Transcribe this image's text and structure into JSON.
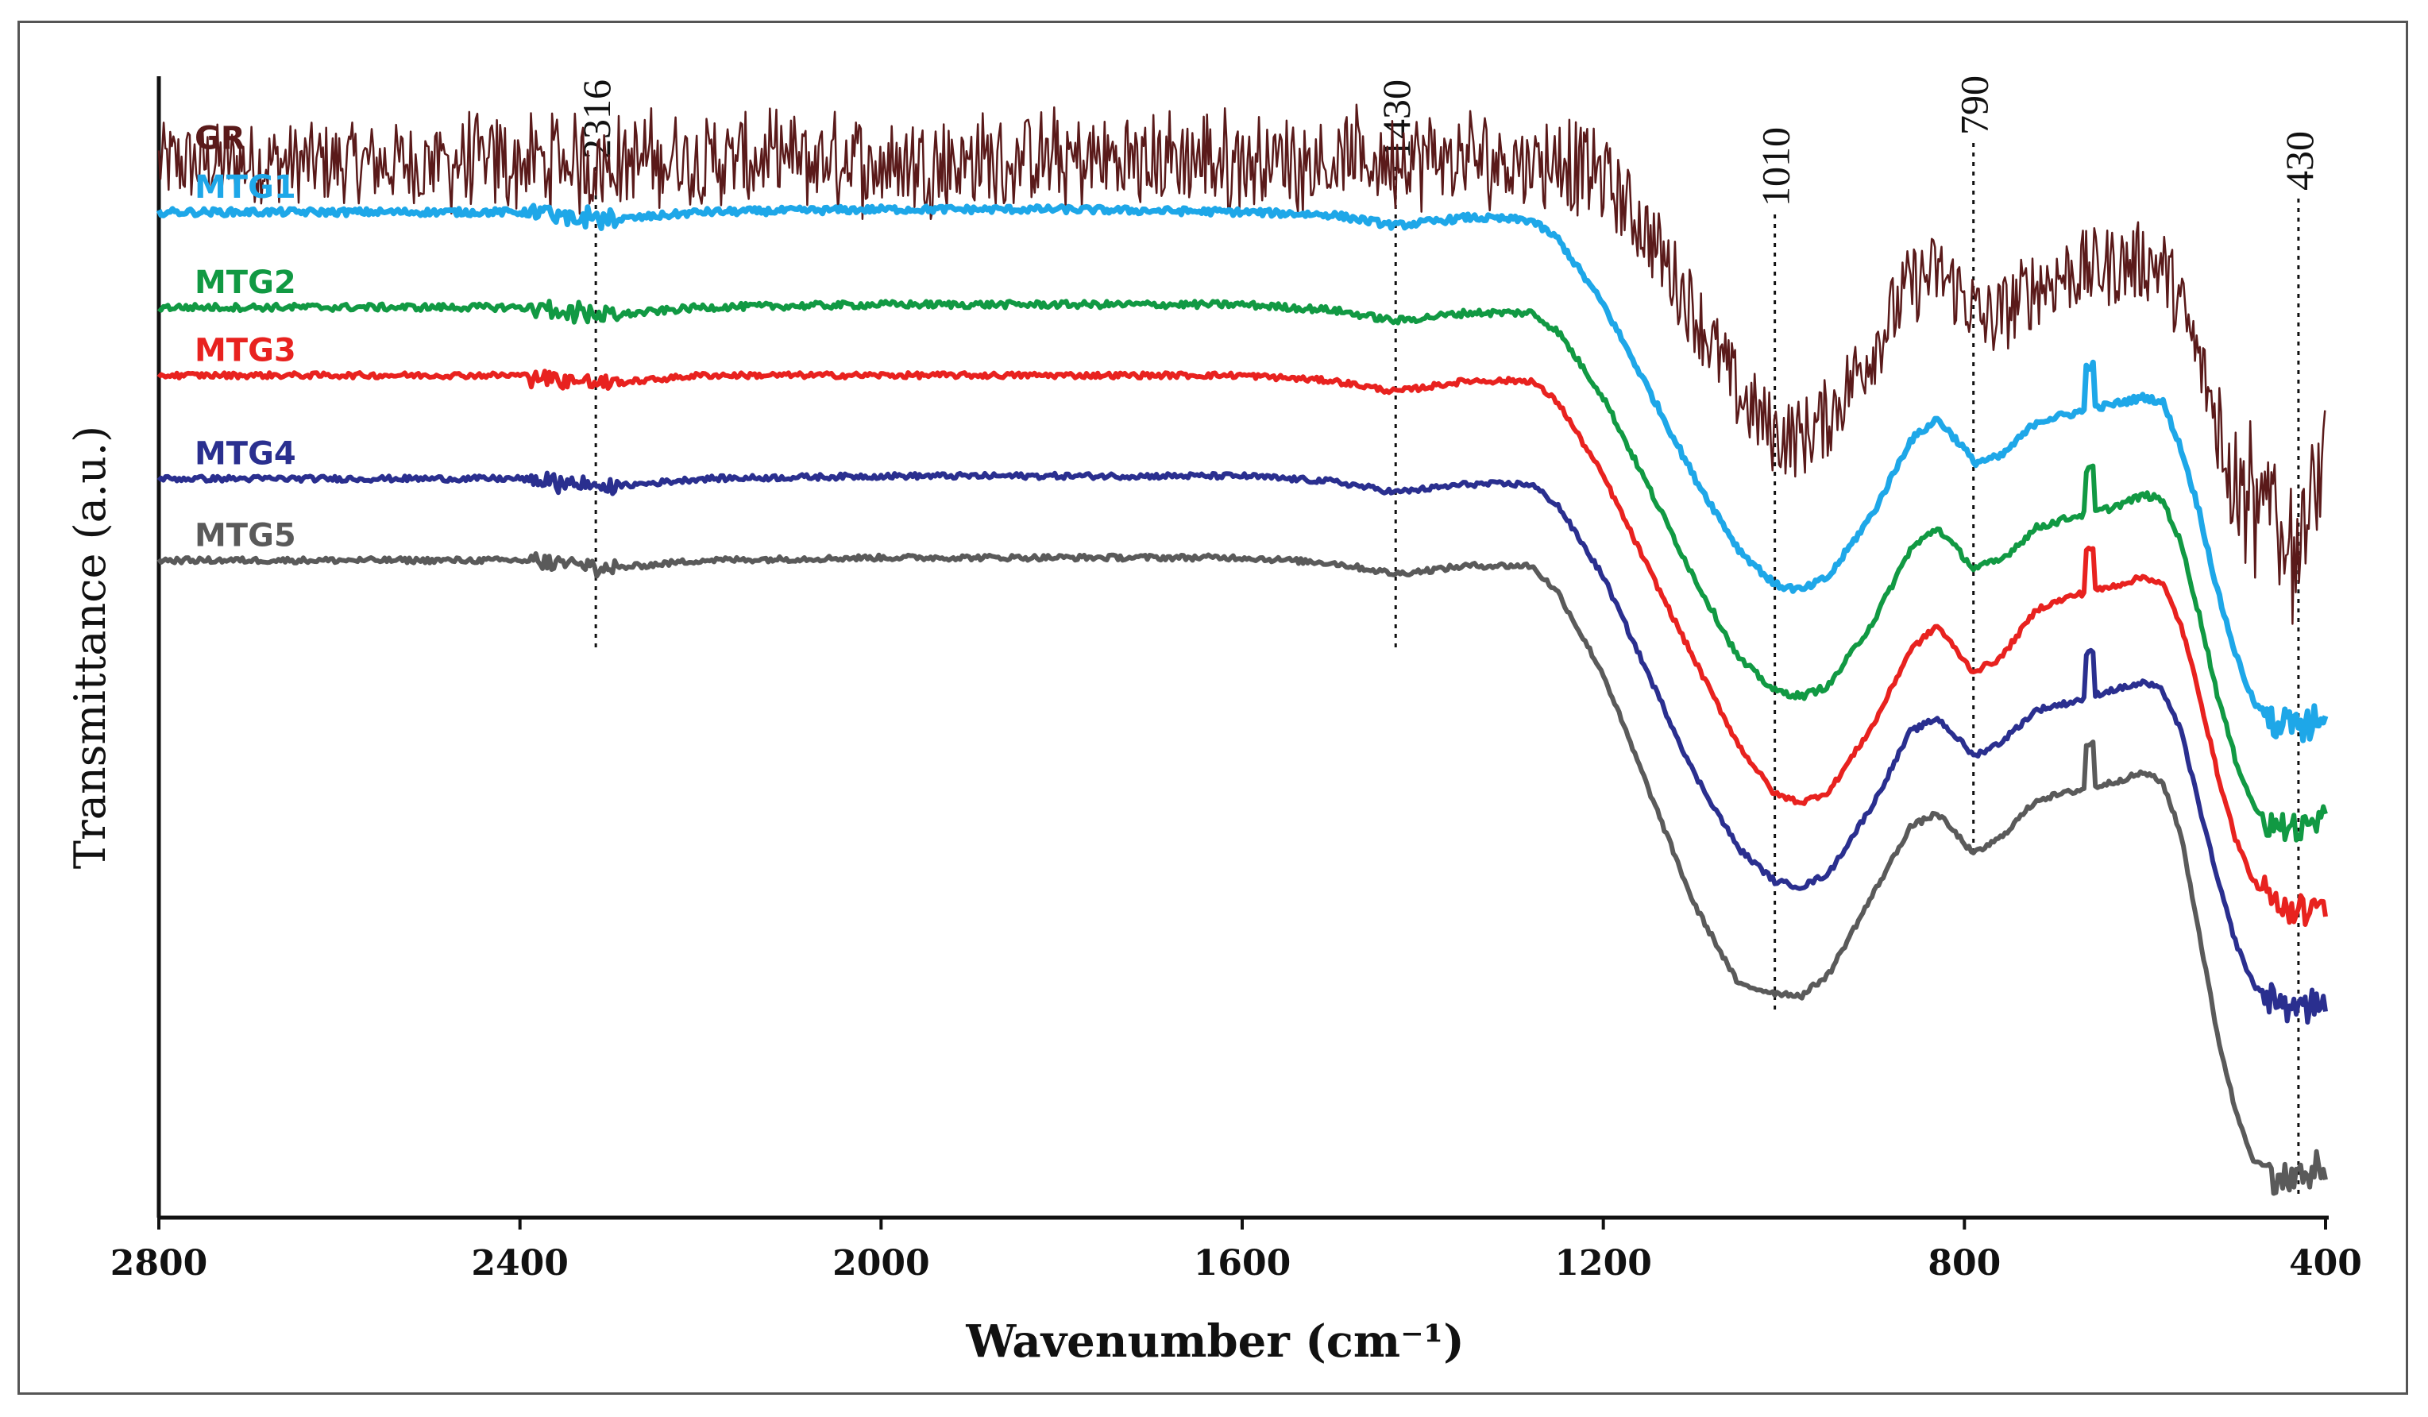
{
  "chart_data": {
    "type": "line",
    "title": "",
    "xlabel": "Wavenumber (cm⁻¹)",
    "ylabel": "Transmittance (a.u.)",
    "xlim": [
      2800,
      400
    ],
    "x_reversed": true,
    "x_ticks": [
      "2800",
      "2400",
      "2000",
      "1600",
      "1200",
      "800",
      "400"
    ],
    "grid": false,
    "y_ticks_shown": false,
    "peak_markers": [
      {
        "label": "2316",
        "x": 2316
      },
      {
        "label": "1430",
        "x": 1430
      },
      {
        "label": "1010",
        "x": 1010
      },
      {
        "label": "790",
        "x": 790
      },
      {
        "label": "430",
        "x": 430
      }
    ],
    "series": [
      {
        "name": "GR",
        "color": "#5a1a1a",
        "noise": 3.0,
        "width": 2.5,
        "x": [
          2800,
          2600,
          2400,
          2200,
          2000,
          1800,
          1600,
          1400,
          1300,
          1250,
          1200,
          1150,
          1100,
          1050,
          1010,
          980,
          950,
          900,
          860,
          830,
          800,
          780,
          760,
          720,
          680,
          640,
          600,
          580,
          560,
          540,
          520,
          500,
          480,
          460,
          440,
          430,
          420,
          410,
          400
        ],
        "y": [
          92.8,
          92.8,
          92.8,
          92.9,
          92.8,
          92.9,
          92.9,
          92.9,
          92.9,
          92.9,
          92.3,
          90.2,
          87.4,
          84.3,
          82.8,
          82.7,
          83.5,
          86.1,
          88.3,
          88.8,
          87.9,
          87.0,
          87.2,
          88.3,
          88.8,
          89.0,
          89.2,
          89.0,
          87.5,
          85.5,
          83.3,
          81.5,
          80.4,
          79.8,
          79.3,
          78.8,
          79.5,
          80.5,
          81.0
        ]
      },
      {
        "name": "MTG1",
        "color": "#1ea7e8",
        "noise": 0.25,
        "width": 7,
        "x": [
          2800,
          2600,
          2400,
          2300,
          2200,
          2000,
          1800,
          1600,
          1500,
          1430,
          1350,
          1280,
          1250,
          1200,
          1150,
          1100,
          1050,
          1010,
          980,
          950,
          900,
          860,
          830,
          800,
          790,
          760,
          720,
          680,
          640,
          600,
          580,
          560,
          540,
          520,
          500,
          480,
          460,
          440,
          430,
          420,
          410,
          400
        ],
        "y": [
          91.0,
          91.0,
          91.0,
          90.7,
          91.0,
          91.1,
          91.1,
          91.0,
          90.9,
          90.5,
          90.8,
          90.7,
          90.0,
          87.6,
          84.5,
          81.3,
          78.6,
          77.3,
          77.1,
          77.6,
          80.0,
          82.6,
          83.4,
          82.3,
          81.8,
          82.0,
          83.3,
          83.6,
          83.9,
          84.2,
          84.0,
          82.3,
          80.0,
          77.1,
          74.8,
          73.0,
          72.3,
          72.1,
          72.2,
          72.0,
          72.5,
          72.3
        ]
      },
      {
        "name": "MTG2",
        "color": "#119943",
        "noise": 0.25,
        "width": 6,
        "x": [
          2800,
          2600,
          2400,
          2300,
          2200,
          2000,
          1800,
          1600,
          1500,
          1430,
          1350,
          1280,
          1250,
          1200,
          1150,
          1100,
          1050,
          1010,
          980,
          950,
          900,
          860,
          830,
          800,
          790,
          760,
          720,
          680,
          640,
          600,
          580,
          560,
          540,
          520,
          500,
          480,
          460,
          440,
          430,
          420,
          410,
          400
        ],
        "y": [
          87.5,
          87.5,
          87.5,
          87.2,
          87.5,
          87.6,
          87.6,
          87.6,
          87.4,
          87.0,
          87.3,
          87.3,
          86.6,
          84.2,
          80.9,
          77.6,
          74.6,
          73.4,
          73.2,
          73.6,
          76.0,
          78.6,
          79.4,
          78.3,
          77.9,
          78.2,
          79.4,
          79.8,
          80.1,
          80.6,
          80.4,
          78.8,
          76.2,
          73.3,
          70.9,
          69.2,
          68.4,
          68.3,
          68.5,
          68.2,
          68.6,
          68.4
        ]
      },
      {
        "name": "MTG3",
        "color": "#e8221f",
        "noise": 0.2,
        "width": 6,
        "x": [
          2800,
          2600,
          2400,
          2300,
          2200,
          2000,
          1800,
          1600,
          1500,
          1430,
          1350,
          1280,
          1250,
          1200,
          1150,
          1100,
          1050,
          1010,
          980,
          950,
          900,
          860,
          830,
          800,
          790,
          760,
          720,
          680,
          640,
          600,
          580,
          560,
          540,
          520,
          500,
          480,
          460,
          440,
          430,
          420,
          410,
          400
        ],
        "y": [
          85.0,
          85.0,
          85.0,
          84.7,
          85.0,
          85.0,
          85.0,
          85.0,
          84.8,
          84.4,
          84.8,
          84.8,
          84.0,
          81.3,
          77.9,
          74.6,
          71.4,
          69.6,
          69.3,
          69.7,
          72.2,
          74.9,
          75.8,
          74.5,
          74.1,
          74.6,
          76.4,
          76.9,
          77.2,
          77.6,
          77.3,
          75.8,
          73.3,
          70.4,
          68.0,
          66.4,
          65.7,
          65.4,
          65.5,
          65.2,
          65.6,
          65.4
        ]
      },
      {
        "name": "MTG4",
        "color": "#2a2f8f",
        "noise": 0.2,
        "width": 6,
        "x": [
          2800,
          2600,
          2400,
          2300,
          2200,
          2000,
          1800,
          1600,
          1500,
          1430,
          1350,
          1280,
          1250,
          1200,
          1150,
          1100,
          1050,
          1010,
          980,
          950,
          900,
          860,
          830,
          800,
          790,
          760,
          720,
          680,
          640,
          600,
          580,
          560,
          540,
          520,
          500,
          480,
          460,
          440,
          430,
          420,
          410,
          400
        ],
        "y": [
          81.2,
          81.2,
          81.2,
          80.9,
          81.2,
          81.3,
          81.3,
          81.3,
          81.1,
          80.7,
          81.0,
          81.0,
          80.2,
          77.6,
          74.0,
          70.4,
          67.6,
          66.4,
          66.2,
          66.7,
          69.3,
          71.9,
          72.4,
          71.4,
          71.0,
          71.5,
          72.7,
          73.0,
          73.4,
          73.7,
          73.4,
          71.9,
          69.2,
          66.5,
          64.2,
          62.6,
          62.1,
          61.8,
          62.0,
          61.6,
          62.2,
          62.0
        ]
      },
      {
        "name": "MTG5",
        "color": "#5a5a5a",
        "noise": 0.2,
        "width": 6,
        "x": [
          2800,
          2600,
          2400,
          2300,
          2200,
          2000,
          1800,
          1600,
          1500,
          1430,
          1350,
          1280,
          1250,
          1200,
          1150,
          1100,
          1050,
          1010,
          980,
          950,
          900,
          860,
          830,
          800,
          790,
          760,
          720,
          680,
          640,
          600,
          580,
          560,
          540,
          520,
          500,
          480,
          460,
          440,
          430,
          420,
          410,
          400
        ],
        "y": [
          78.2,
          78.2,
          78.2,
          77.9,
          78.2,
          78.3,
          78.3,
          78.3,
          78.1,
          77.7,
          78.0,
          78.0,
          77.0,
          74.0,
          69.8,
          65.6,
          62.6,
          62.3,
          62.2,
          63.0,
          66.0,
          68.4,
          68.9,
          67.8,
          67.4,
          68.0,
          69.4,
          69.7,
          70.0,
          70.4,
          70.0,
          68.1,
          64.5,
          60.8,
          58.0,
          56.2,
          55.6,
          55.4,
          55.8,
          55.3,
          55.9,
          55.7
        ]
      }
    ],
    "ylim": [
      55,
      95
    ]
  }
}
